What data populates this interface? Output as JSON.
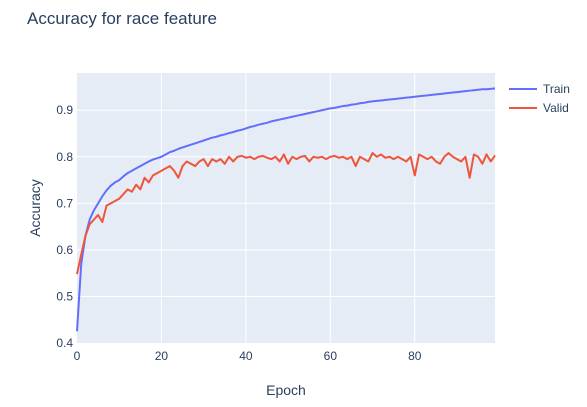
{
  "chart_data": {
    "type": "line",
    "title": "Accuracy for race feature",
    "xlabel": "Epoch",
    "ylabel": "Accuracy",
    "xlim": [
      0,
      99
    ],
    "ylim": [
      0.4,
      0.98
    ],
    "x_ticks": [
      0,
      20,
      40,
      60,
      80
    ],
    "y_ticks": [
      0.4,
      0.5,
      0.6,
      0.7,
      0.8,
      0.9
    ],
    "x_tick_labels": [
      "0",
      "20",
      "40",
      "60",
      "80"
    ],
    "y_tick_labels": [
      "0.4",
      "0.5",
      "0.6",
      "0.7",
      "0.8",
      "0.9"
    ],
    "grid": true,
    "legend_position": "top-right",
    "plot_background": "#e5ecf6",
    "series": [
      {
        "name": "Train",
        "color": "#636efa",
        "values": [
          0.425,
          0.57,
          0.63,
          0.665,
          0.685,
          0.7,
          0.715,
          0.728,
          0.738,
          0.745,
          0.75,
          0.758,
          0.765,
          0.77,
          0.775,
          0.78,
          0.785,
          0.79,
          0.794,
          0.797,
          0.8,
          0.805,
          0.81,
          0.813,
          0.817,
          0.82,
          0.823,
          0.826,
          0.829,
          0.832,
          0.835,
          0.838,
          0.841,
          0.843,
          0.846,
          0.848,
          0.851,
          0.853,
          0.856,
          0.858,
          0.861,
          0.864,
          0.866,
          0.869,
          0.871,
          0.873,
          0.876,
          0.878,
          0.88,
          0.882,
          0.884,
          0.886,
          0.888,
          0.89,
          0.892,
          0.894,
          0.896,
          0.898,
          0.9,
          0.902,
          0.904,
          0.905,
          0.907,
          0.909,
          0.91,
          0.912,
          0.913,
          0.915,
          0.916,
          0.918,
          0.919,
          0.92,
          0.921,
          0.922,
          0.923,
          0.924,
          0.925,
          0.926,
          0.927,
          0.928,
          0.929,
          0.93,
          0.931,
          0.932,
          0.933,
          0.934,
          0.935,
          0.936,
          0.937,
          0.938,
          0.939,
          0.94,
          0.941,
          0.942,
          0.943,
          0.944,
          0.945,
          0.945,
          0.946,
          0.947
        ]
      },
      {
        "name": "Valid",
        "color": "#ef553b",
        "values": [
          0.548,
          0.59,
          0.63,
          0.655,
          0.665,
          0.675,
          0.66,
          0.695,
          0.7,
          0.705,
          0.71,
          0.72,
          0.73,
          0.725,
          0.74,
          0.73,
          0.755,
          0.745,
          0.76,
          0.765,
          0.77,
          0.775,
          0.78,
          0.77,
          0.755,
          0.78,
          0.79,
          0.785,
          0.78,
          0.79,
          0.795,
          0.78,
          0.795,
          0.79,
          0.795,
          0.785,
          0.8,
          0.79,
          0.8,
          0.802,
          0.798,
          0.8,
          0.795,
          0.8,
          0.802,
          0.798,
          0.795,
          0.8,
          0.79,
          0.805,
          0.785,
          0.8,
          0.795,
          0.8,
          0.802,
          0.79,
          0.8,
          0.798,
          0.8,
          0.795,
          0.8,
          0.802,
          0.798,
          0.8,
          0.795,
          0.8,
          0.78,
          0.8,
          0.795,
          0.79,
          0.808,
          0.8,
          0.805,
          0.798,
          0.8,
          0.795,
          0.8,
          0.795,
          0.79,
          0.8,
          0.76,
          0.805,
          0.8,
          0.795,
          0.8,
          0.79,
          0.785,
          0.8,
          0.808,
          0.8,
          0.795,
          0.79,
          0.8,
          0.755,
          0.805,
          0.8,
          0.785,
          0.805,
          0.79,
          0.803
        ]
      }
    ]
  }
}
